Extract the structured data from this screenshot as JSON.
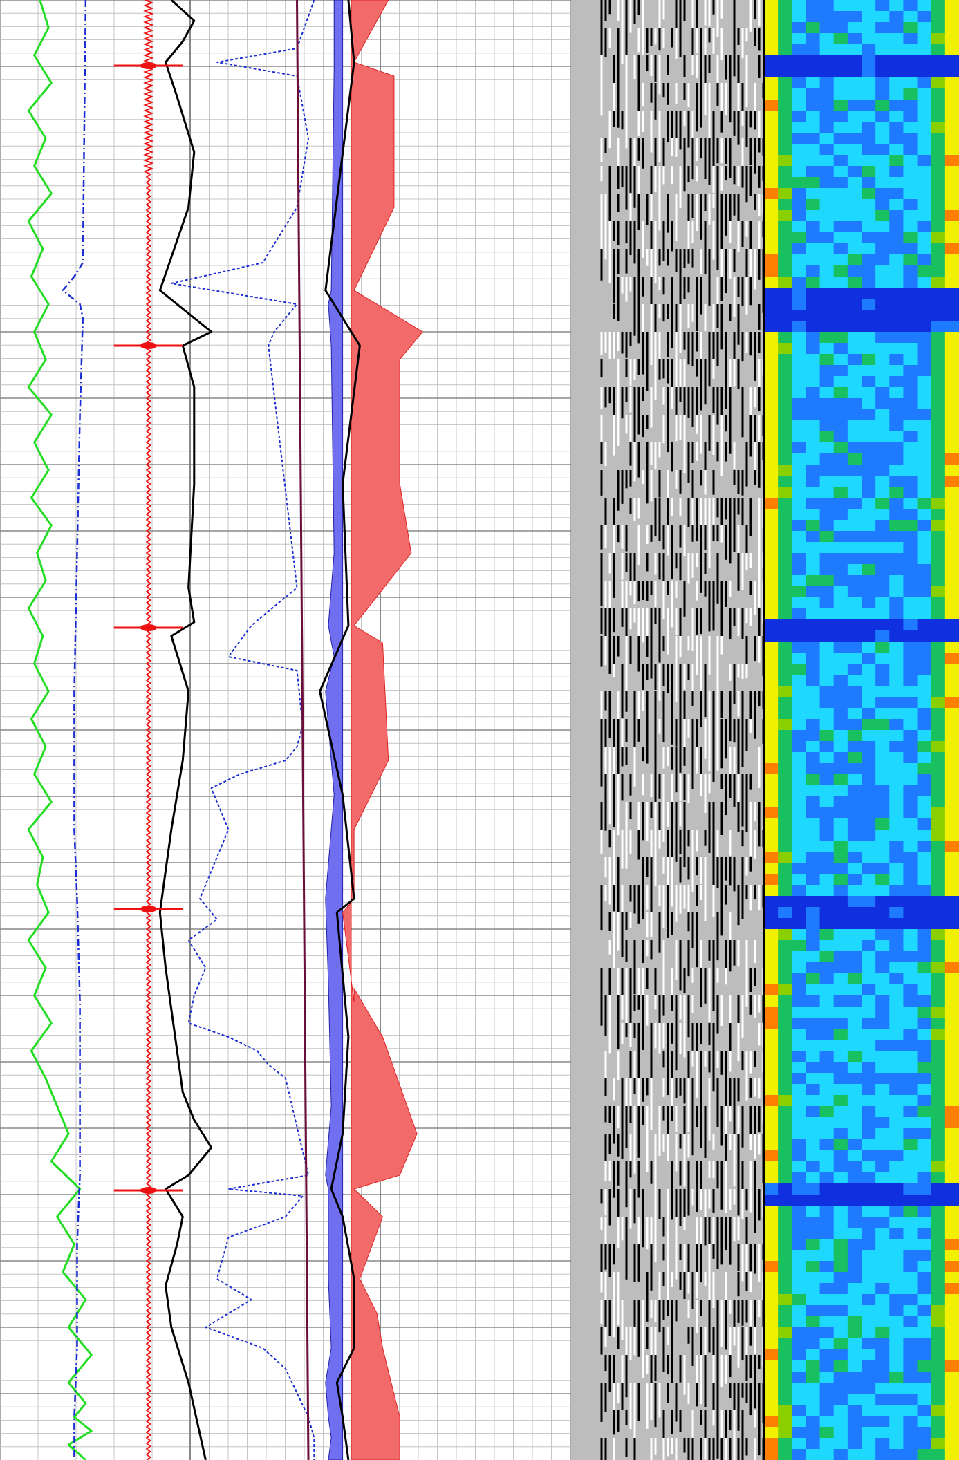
{
  "chart_data": {
    "type": "line",
    "title": "",
    "xlabel": "",
    "ylabel": "",
    "depth_range": [
      0,
      2112
    ],
    "grid": true,
    "colors": {
      "gamma_ray": "#22dd22",
      "dashdot_curve": "#1a2dd4",
      "red_pulse_curve": "#ee1111",
      "black_curve": "#000000",
      "dotted_blue_curve": "#1a2dd4",
      "maroon_curve": "#6b0f3a",
      "blue_fill": "#6f6ff0",
      "red_fill": "#f26a6a",
      "grid_minor": "#b9b9b9",
      "grid_major": "#888888",
      "waveform_bg": "#bdbdbd"
    },
    "bed_boundaries": [
      90,
      425,
      460,
      905,
      1315,
      1720
    ],
    "markers": [
      95,
      500,
      908,
      1315,
      1722
    ],
    "series": [
      {
        "key": "gamma_ray",
        "x": [
          0.07,
          0.085,
          0.06,
          0.09,
          0.05,
          0.08,
          0.06,
          0.09,
          0.05,
          0.075,
          0.055,
          0.085,
          0.06,
          0.08,
          0.05,
          0.09,
          0.06,
          0.085,
          0.055,
          0.09,
          0.065,
          0.08,
          0.05,
          0.075,
          0.06,
          0.085,
          0.055,
          0.08,
          0.06,
          0.09,
          0.05,
          0.075,
          0.065,
          0.085,
          0.05,
          0.08,
          0.06,
          0.09,
          0.055,
          0.08,
          0.1,
          0.12,
          0.09,
          0.14,
          0.1,
          0.13,
          0.11,
          0.15,
          0.12,
          0.16,
          0.12,
          0.15,
          0.13,
          0.16,
          0.12,
          0.15
        ],
        "depth": [
          0,
          40,
          80,
          120,
          160,
          200,
          240,
          280,
          320,
          360,
          400,
          440,
          480,
          520,
          560,
          600,
          640,
          680,
          720,
          760,
          800,
          840,
          880,
          920,
          960,
          1000,
          1040,
          1080,
          1120,
          1160,
          1200,
          1240,
          1280,
          1320,
          1360,
          1400,
          1440,
          1480,
          1520,
          1560,
          1600,
          1640,
          1680,
          1720,
          1760,
          1800,
          1840,
          1880,
          1920,
          1960,
          2000,
          2030,
          2050,
          2070,
          2090,
          2112
        ]
      },
      {
        "key": "dashdot_curve",
        "x": [
          0.15,
          0.145,
          0.13,
          0.11,
          0.14,
          0.145,
          0.14,
          0.135,
          0.13,
          0.13,
          0.135,
          0.14,
          0.14,
          0.14,
          0.135,
          0.135,
          0.13,
          0.13
        ],
        "depth": [
          0,
          380,
          400,
          420,
          440,
          460,
          600,
          800,
          1000,
          1200,
          1300,
          1450,
          1550,
          1700,
          1800,
          1950,
          2050,
          2112
        ]
      },
      {
        "key": "black_curve",
        "x": [
          0.3,
          0.34,
          0.32,
          0.29,
          0.31,
          0.34,
          0.33,
          0.28,
          0.34,
          0.37,
          0.32,
          0.34,
          0.34,
          0.33,
          0.34,
          0.3,
          0.33,
          0.32,
          0.3,
          0.29,
          0.28,
          0.29,
          0.3,
          0.31,
          0.32,
          0.34,
          0.37,
          0.33,
          0.29,
          0.32,
          0.31,
          0.29,
          0.3,
          0.33,
          0.36
        ],
        "depth": [
          0,
          30,
          60,
          90,
          140,
          220,
          300,
          420,
          460,
          480,
          500,
          560,
          700,
          850,
          900,
          920,
          1000,
          1100,
          1200,
          1260,
          1320,
          1400,
          1460,
          1520,
          1580,
          1620,
          1660,
          1700,
          1720,
          1760,
          1800,
          1860,
          1920,
          2000,
          2112
        ]
      },
      {
        "key": "dotted_blue_curve",
        "x": [
          0.55,
          0.52,
          0.38,
          0.52,
          0.54,
          0.52,
          0.46,
          0.3,
          0.52,
          0.48,
          0.47,
          0.52,
          0.44,
          0.4,
          0.52,
          0.53,
          0.52,
          0.5,
          0.42,
          0.37,
          0.4,
          0.35,
          0.38,
          0.33,
          0.36,
          0.34,
          0.33,
          0.4,
          0.45,
          0.47,
          0.5,
          0.54,
          0.4,
          0.53,
          0.5,
          0.4,
          0.38,
          0.44,
          0.36,
          0.46,
          0.5,
          0.54,
          0.55,
          0.55
        ],
        "depth": [
          0,
          70,
          90,
          110,
          200,
          300,
          380,
          410,
          440,
          480,
          500,
          850,
          905,
          950,
          970,
          1050,
          1080,
          1100,
          1120,
          1140,
          1200,
          1300,
          1330,
          1360,
          1400,
          1440,
          1480,
          1500,
          1520,
          1540,
          1560,
          1700,
          1720,
          1730,
          1760,
          1790,
          1850,
          1880,
          1920,
          1950,
          1980,
          2050,
          2080,
          2112
        ]
      },
      {
        "key": "maroon_curve",
        "x": [
          0.52,
          0.54
        ],
        "depth": [
          0,
          2112
        ]
      },
      {
        "key": "blue_fill_left",
        "x": [
          0.585,
          0.585,
          0.58,
          0.575,
          0.58,
          0.585,
          0.575,
          0.585,
          0.57,
          0.585,
          0.57,
          0.575,
          0.58,
          0.57,
          0.575,
          0.575,
          0.58,
          0.57,
          0.575,
          0.58,
          0.575
        ],
        "depth": [
          0,
          100,
          420,
          440,
          500,
          800,
          905,
          950,
          1000,
          1150,
          1300,
          1420,
          1600,
          1700,
          1720,
          1850,
          1950,
          2000,
          2050,
          2080,
          2112
        ]
      },
      {
        "key": "red_fill_right",
        "x": [
          0.68,
          0.62,
          0.69,
          0.69,
          0.62,
          0.74,
          0.7,
          0.7,
          0.72,
          0.62,
          0.67,
          0.68,
          0.62,
          0.62,
          0.6,
          0.62,
          0.62,
          0.67,
          0.73,
          0.7,
          0.62,
          0.67,
          0.63,
          0.66,
          0.67,
          0.7,
          0.7
        ],
        "depth": [
          0,
          90,
          110,
          300,
          420,
          480,
          520,
          700,
          800,
          905,
          930,
          1100,
          1200,
          1300,
          1320,
          1450,
          1430,
          1500,
          1640,
          1700,
          1720,
          1760,
          1850,
          1900,
          1950,
          2050,
          2112
        ]
      }
    ]
  }
}
